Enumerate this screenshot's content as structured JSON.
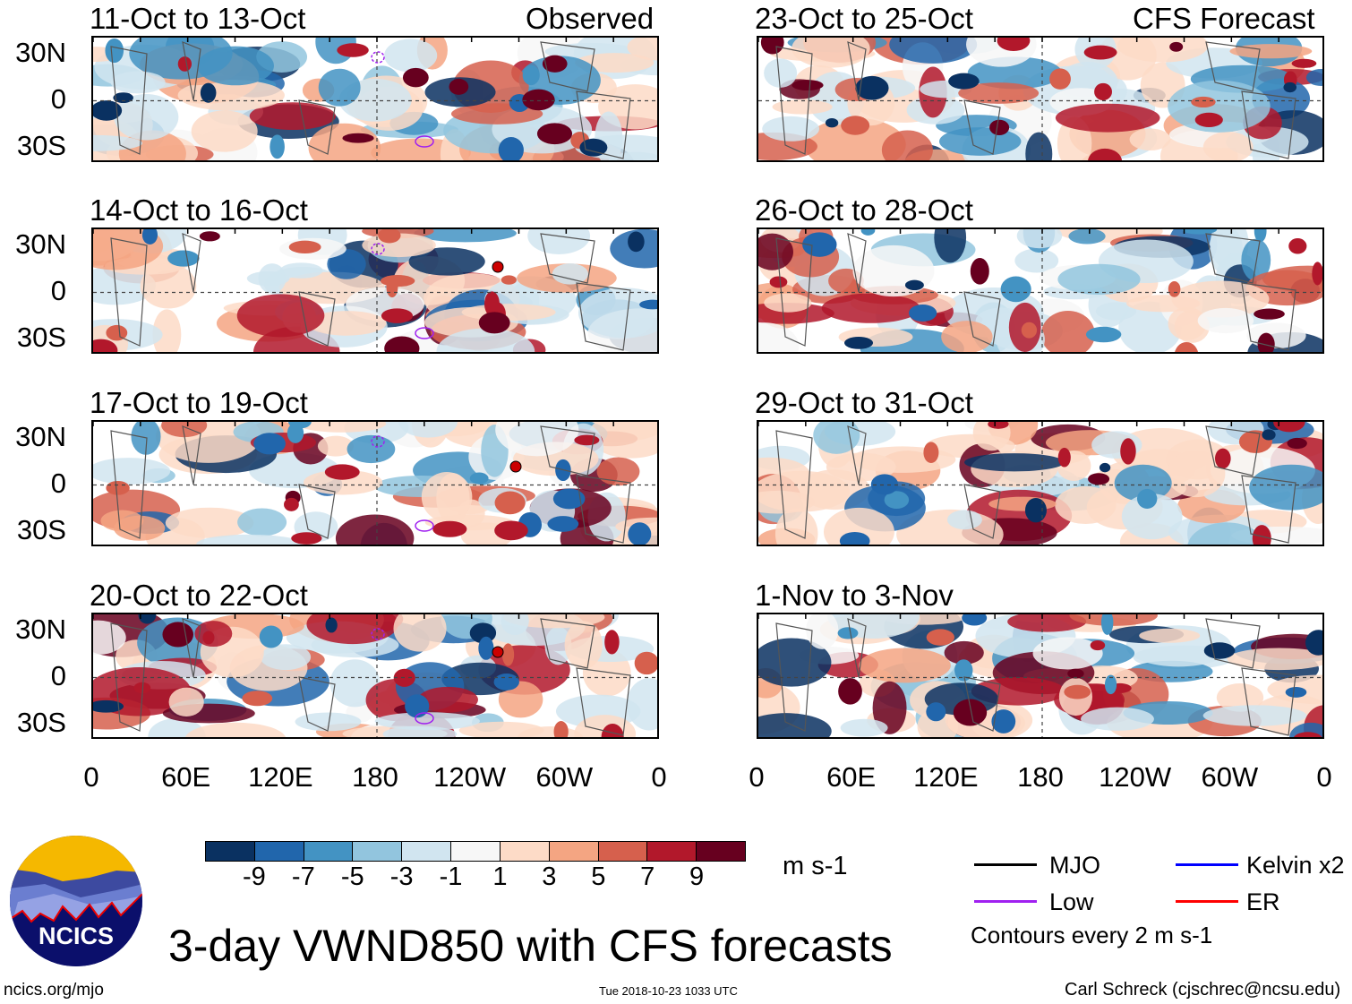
{
  "left_header": {
    "label": "Observed"
  },
  "right_header": {
    "label": "CFS Forecast"
  },
  "panels_left": [
    {
      "title": "11-Oct to 13-Oct"
    },
    {
      "title": "14-Oct to 16-Oct"
    },
    {
      "title": "17-Oct to 19-Oct"
    },
    {
      "title": "20-Oct to 22-Oct"
    }
  ],
  "panels_right": [
    {
      "title": "23-Oct to 25-Oct"
    },
    {
      "title": "26-Oct to 28-Oct"
    },
    {
      "title": "29-Oct to 31-Oct"
    },
    {
      "title": "1-Nov to 3-Nov"
    }
  ],
  "lat_labels": [
    "30N",
    "0",
    "30S"
  ],
  "lon_labels": [
    "0",
    "60E",
    "120E",
    "180",
    "120W",
    "60W",
    "0"
  ],
  "colorbar": {
    "colors": [
      "#0a3161",
      "#2166ac",
      "#4393c3",
      "#92c5de",
      "#d1e5f0",
      "#f7f7f7",
      "#fddbc7",
      "#f4a582",
      "#d6604d",
      "#b2182b",
      "#67001f"
    ],
    "labels": [
      "-9",
      "-7",
      "-5",
      "-3",
      "-1",
      "1",
      "3",
      "5",
      "7",
      "9"
    ],
    "units": "m s-1"
  },
  "legend": {
    "items": [
      {
        "label": "MJO",
        "color": "#000000"
      },
      {
        "label": "Kelvin x2",
        "color": "#0000ff"
      },
      {
        "label": "Low",
        "color": "#a020f0"
      },
      {
        "label": "ER",
        "color": "#ff0000"
      }
    ],
    "note": "Contours every 2 m s-1"
  },
  "logo": {
    "text": "NCICS"
  },
  "title": "3-day VWND850 with CFS forecasts",
  "footer": {
    "url": "ncics.org/mjo",
    "timestamp": "Tue 2018-10-23 1033 UTC",
    "author": "Carl Schreck (cjschrec@ncsu.edu)"
  }
}
